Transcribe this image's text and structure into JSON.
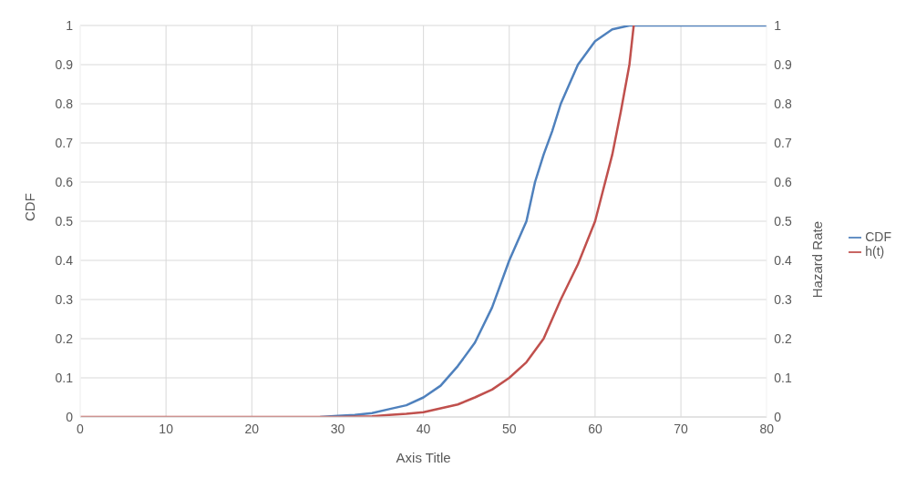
{
  "chart_data": {
    "type": "line",
    "xlabel": "Axis Title",
    "ylabel": "CDF",
    "y2label": "Hazard Rate",
    "xlim": [
      0,
      80
    ],
    "xticks": [
      0,
      10,
      20,
      30,
      40,
      50,
      60,
      70,
      80
    ],
    "ylim": [
      0,
      1
    ],
    "yticks": [
      0,
      0.1,
      0.2,
      0.3,
      0.4,
      0.5,
      0.6,
      0.7,
      0.8,
      0.9,
      1
    ],
    "y2lim": [
      0,
      1
    ],
    "y2ticks": [
      0,
      0.1,
      0.2,
      0.3,
      0.4,
      0.5,
      0.6,
      0.7,
      0.8,
      0.9,
      1
    ],
    "grid": true,
    "legend": "right",
    "marker": "none",
    "line_style": "solid",
    "series": [
      {
        "name": "CDF",
        "color": "#4f81bd",
        "x": [
          28,
          30,
          32,
          34,
          36,
          38,
          40,
          42,
          44,
          46,
          48,
          50,
          52,
          53,
          54,
          55,
          56,
          58,
          60,
          62,
          64,
          66,
          70,
          80
        ],
        "values": [
          0,
          0.003,
          0.005,
          0.01,
          0.02,
          0.03,
          0.05,
          0.08,
          0.13,
          0.19,
          0.28,
          0.4,
          0.5,
          0.6,
          0.67,
          0.73,
          0.8,
          0.9,
          0.96,
          0.99,
          1,
          1,
          1,
          1
        ]
      },
      {
        "name": "h(t)",
        "color": "#c0504d",
        "axis": "y2",
        "x": [
          0,
          10,
          20,
          30,
          34,
          36,
          38,
          40,
          42,
          44,
          46,
          48,
          50,
          52,
          54,
          56,
          58,
          60,
          62,
          63,
          64,
          64.5
        ],
        "values": [
          0,
          0,
          0,
          0,
          0.002,
          0.005,
          0.008,
          0.012,
          0.022,
          0.032,
          0.05,
          0.07,
          0.1,
          0.14,
          0.2,
          0.3,
          0.39,
          0.5,
          0.67,
          0.78,
          0.9,
          1
        ]
      }
    ]
  }
}
